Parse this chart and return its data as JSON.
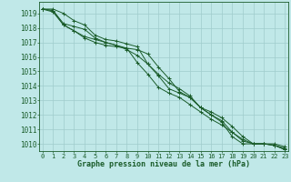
{
  "background_color": "#c0e8e8",
  "grid_color": "#a0cccc",
  "line_color": "#1a5c2a",
  "marker_color": "#1a5c2a",
  "xlabel": "Graphe pression niveau de la mer (hPa)",
  "xlabel_fontsize": 6.0,
  "ytick_fontsize": 5.5,
  "xtick_fontsize": 5.0,
  "ylim": [
    1009.5,
    1019.8
  ],
  "xlim": [
    -0.3,
    23.3
  ],
  "yticks": [
    1010,
    1011,
    1012,
    1013,
    1014,
    1015,
    1016,
    1017,
    1018,
    1019
  ],
  "xticks": [
    0,
    1,
    2,
    3,
    4,
    5,
    6,
    7,
    8,
    9,
    10,
    11,
    12,
    13,
    14,
    15,
    16,
    17,
    18,
    19,
    20,
    21,
    22,
    23
  ],
  "series": [
    [
      1019.3,
      1019.3,
      1019.0,
      1018.5,
      1018.2,
      1017.5,
      1017.2,
      1017.1,
      1016.9,
      1016.7,
      1015.5,
      1014.7,
      1013.8,
      1013.5,
      1013.2,
      1012.5,
      1012.0,
      1011.5,
      1010.5,
      1010.0,
      1010.0,
      1010.0,
      1009.9,
      1009.6
    ],
    [
      1019.3,
      1019.2,
      1018.3,
      1018.1,
      1017.9,
      1017.3,
      1017.0,
      1016.8,
      1016.5,
      1016.1,
      1015.5,
      1014.8,
      1014.2,
      1013.8,
      1013.3,
      1012.5,
      1012.0,
      1011.6,
      1010.8,
      1010.2,
      1010.0,
      1010.0,
      1010.0,
      1009.8
    ],
    [
      1019.3,
      1019.2,
      1018.2,
      1017.8,
      1017.3,
      1017.0,
      1016.8,
      1016.7,
      1016.6,
      1016.5,
      1016.2,
      1015.3,
      1014.5,
      1013.6,
      1013.2,
      1012.5,
      1012.2,
      1011.8,
      1011.2,
      1010.5,
      1010.0,
      1010.0,
      1009.9,
      1009.7
    ],
    [
      1019.3,
      1019.1,
      1018.2,
      1017.8,
      1017.4,
      1017.2,
      1017.0,
      1016.8,
      1016.6,
      1015.6,
      1014.8,
      1013.9,
      1013.5,
      1013.2,
      1012.7,
      1012.2,
      1011.7,
      1011.3,
      1010.8,
      1010.3,
      1010.0,
      1010.0,
      1009.9,
      1009.6
    ]
  ]
}
